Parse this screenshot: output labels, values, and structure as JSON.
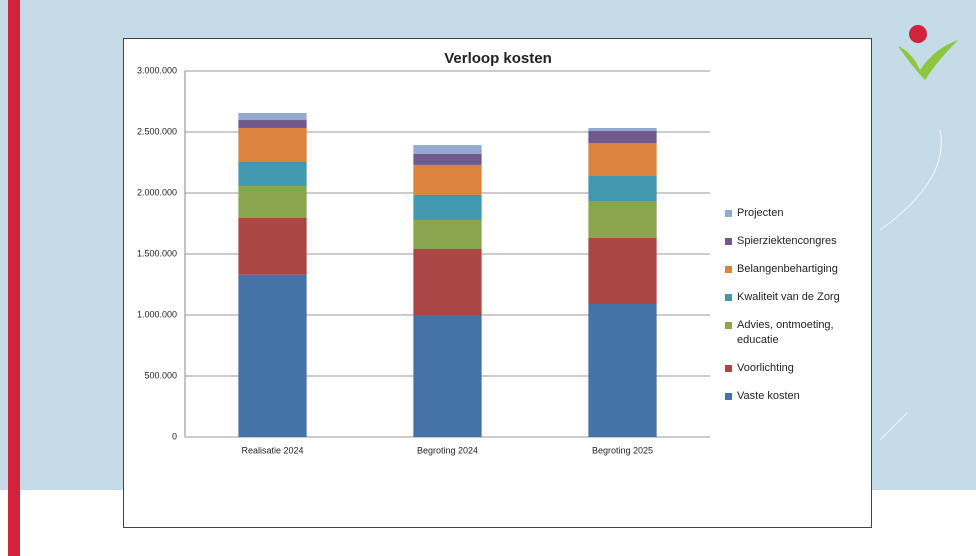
{
  "chart_data": {
    "type": "stacked_bar",
    "title": "Verloop kosten",
    "categories": [
      "Realisatie 2024",
      "Begroting 2024",
      "Begroting 2025"
    ],
    "series": [
      {
        "name": "Vaste kosten",
        "color": "#4572a7",
        "values": [
          1330000,
          1000000,
          1090000
        ]
      },
      {
        "name": "Voorlichting",
        "color": "#aa4643",
        "values": [
          465000,
          541000,
          541000
        ]
      },
      {
        "name": "Advies, ontmoeting, educatie",
        "color": "#89a54e",
        "values": [
          262000,
          238000,
          303000
        ]
      },
      {
        "name": "Kwaliteit van de Zorg",
        "color": "#4198af",
        "values": [
          197000,
          205000,
          205000
        ]
      },
      {
        "name": "Belangenbehartiging",
        "color": "#db843d",
        "values": [
          279000,
          246000,
          271000
        ]
      },
      {
        "name": "Spierziektencongres",
        "color": "#71588f",
        "values": [
          65000,
          90000,
          98000
        ]
      },
      {
        "name": "Projecten",
        "color": "#93a9cf",
        "values": [
          58000,
          73000,
          25000
        ]
      }
    ],
    "ylim": [
      0,
      3000000
    ],
    "yticks": [
      0,
      {
        "value": 500000,
        "label": "500.000"
      },
      {
        "value": 1000000,
        "label": "1.000.000"
      },
      {
        "value": 1500000,
        "label": "1.500.000"
      },
      {
        "value": 2000000,
        "label": "2.000.000"
      },
      {
        "value": 2500000,
        "label": "2.500.000"
      },
      {
        "value": 3000000,
        "label": "3.000.000"
      }
    ],
    "grid": true,
    "legend": "right"
  }
}
